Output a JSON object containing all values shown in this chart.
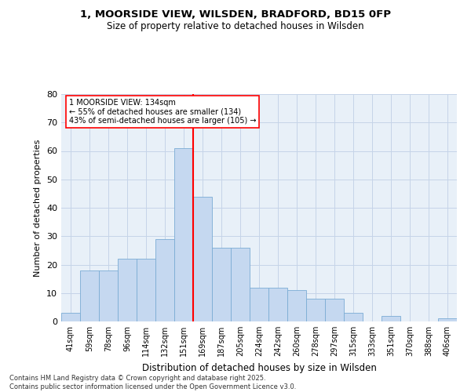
{
  "title1": "1, MOORSIDE VIEW, WILSDEN, BRADFORD, BD15 0FP",
  "title2": "Size of property relative to detached houses in Wilsden",
  "xlabel": "Distribution of detached houses by size in Wilsden",
  "ylabel": "Number of detached properties",
  "bar_labels": [
    "41sqm",
    "59sqm",
    "78sqm",
    "96sqm",
    "114sqm",
    "132sqm",
    "151sqm",
    "169sqm",
    "187sqm",
    "205sqm",
    "224sqm",
    "242sqm",
    "260sqm",
    "278sqm",
    "297sqm",
    "315sqm",
    "333sqm",
    "351sqm",
    "370sqm",
    "388sqm",
    "406sqm"
  ],
  "bar_values": [
    3,
    18,
    18,
    22,
    22,
    29,
    61,
    44,
    26,
    26,
    12,
    12,
    11,
    8,
    8,
    3,
    0,
    2,
    0,
    0,
    1
  ],
  "bar_color": "#c5d8f0",
  "bar_edge_color": "#7bacd4",
  "vline_index": 6,
  "vline_color": "red",
  "annotation_text": "1 MOORSIDE VIEW: 134sqm\n← 55% of detached houses are smaller (134)\n43% of semi-detached houses are larger (105) →",
  "annotation_box_edge": "red",
  "ylim": [
    0,
    80
  ],
  "yticks": [
    0,
    10,
    20,
    30,
    40,
    50,
    60,
    70,
    80
  ],
  "grid_color": "#c5d4e8",
  "bg_color": "#e8f0f8",
  "footer": "Contains HM Land Registry data © Crown copyright and database right 2025.\nContains public sector information licensed under the Open Government Licence v3.0.",
  "fig_bg": "#ffffff"
}
